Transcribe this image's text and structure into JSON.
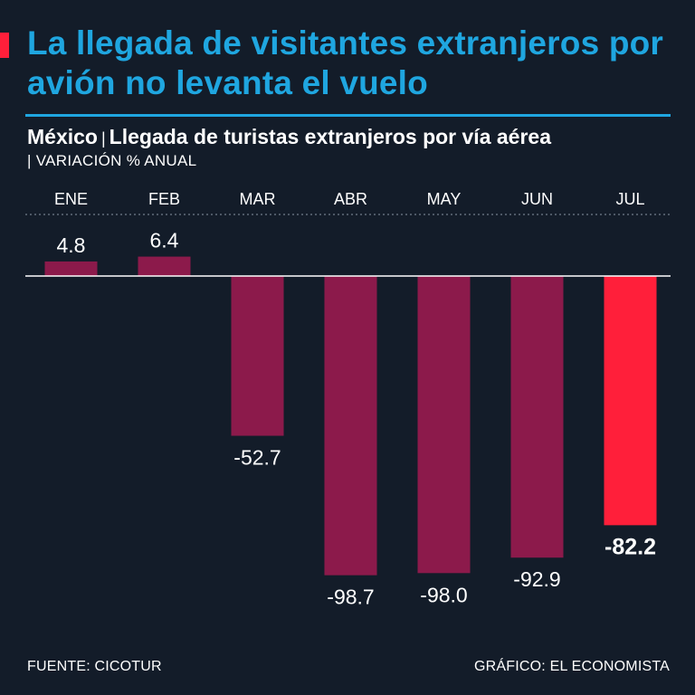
{
  "headline": "La llegada de visitantes extranjeros por avión no levanta el vuelo",
  "subtitle": {
    "country": "México",
    "separator": "|",
    "description": "Llegada de turistas extranjeros por vía aérea"
  },
  "units": "| VARIACIÓN % ANUAL",
  "footer": {
    "source": "FUENTE: CICOTUR",
    "credit": "GRÁFICO: EL ECONOMISTA"
  },
  "colors": {
    "background": "#131c29",
    "headline": "#1fa6e0",
    "bar": "#8c1a4b",
    "highlight_bar": "#ff1f3a",
    "text": "#ffffff"
  },
  "chart_data": {
    "type": "bar",
    "title": "Llegada de turistas extranjeros por vía aérea",
    "ylabel": "Variación % anual",
    "categories": [
      "ENE",
      "FEB",
      "MAR",
      "ABR",
      "MAY",
      "JUN",
      "JUL"
    ],
    "values": [
      4.8,
      6.4,
      -52.7,
      -98.7,
      -98.0,
      -92.9,
      -82.2
    ],
    "value_labels": [
      "4.8",
      "6.4",
      "-52.7",
      "-98.7",
      "-98.0",
      "-92.9",
      "-82.2"
    ],
    "highlight": "JUL",
    "ylim": [
      -100,
      10
    ],
    "grid": false,
    "legend": "none"
  }
}
